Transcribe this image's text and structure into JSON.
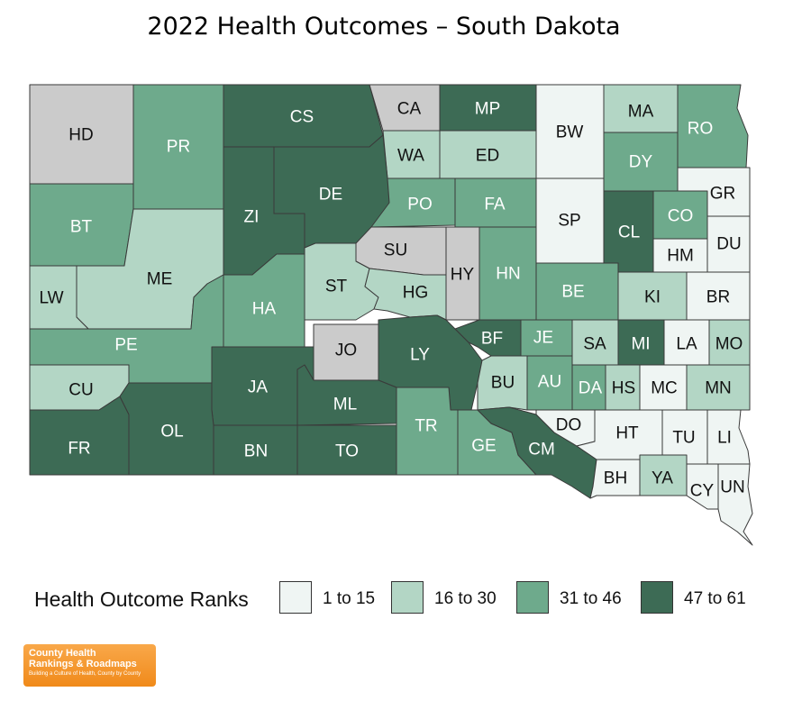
{
  "title": "2022 Health Outcomes – South Dakota",
  "colors": {
    "no_data": "#cbcbcb",
    "tier1": "#eff5f3",
    "tier2": "#b3d6c5",
    "tier3": "#6eaa8c",
    "tier4": "#3d6b55"
  },
  "legend": {
    "title": "Health Outcome Ranks",
    "items": [
      {
        "label": "1 to 15",
        "tier": "tier1"
      },
      {
        "label": "16 to 30",
        "tier": "tier2"
      },
      {
        "label": "31 to 46",
        "tier": "tier3"
      },
      {
        "label": "47 to 61",
        "tier": "tier4"
      }
    ]
  },
  "counties": [
    {
      "abbr": "HD",
      "tier": "no_data"
    },
    {
      "abbr": "PR",
      "tier": "tier3"
    },
    {
      "abbr": "CS",
      "tier": "tier4"
    },
    {
      "abbr": "CA",
      "tier": "no_data"
    },
    {
      "abbr": "MP",
      "tier": "tier4"
    },
    {
      "abbr": "BW",
      "tier": "tier1"
    },
    {
      "abbr": "MA",
      "tier": "tier2"
    },
    {
      "abbr": "RO",
      "tier": "tier3"
    },
    {
      "abbr": "WA",
      "tier": "tier2"
    },
    {
      "abbr": "ED",
      "tier": "tier2"
    },
    {
      "abbr": "DY",
      "tier": "tier3"
    },
    {
      "abbr": "BT",
      "tier": "tier3"
    },
    {
      "abbr": "ZI",
      "tier": "tier4"
    },
    {
      "abbr": "DE",
      "tier": "tier4"
    },
    {
      "abbr": "PO",
      "tier": "tier3"
    },
    {
      "abbr": "FA",
      "tier": "tier3"
    },
    {
      "abbr": "SP",
      "tier": "tier1"
    },
    {
      "abbr": "CL",
      "tier": "tier4"
    },
    {
      "abbr": "CO",
      "tier": "tier3"
    },
    {
      "abbr": "GR",
      "tier": "tier1"
    },
    {
      "abbr": "HM",
      "tier": "tier1"
    },
    {
      "abbr": "DU",
      "tier": "tier1"
    },
    {
      "abbr": "ME",
      "tier": "tier2"
    },
    {
      "abbr": "LW",
      "tier": "tier2"
    },
    {
      "abbr": "SU",
      "tier": "no_data"
    },
    {
      "abbr": "HY",
      "tier": "no_data"
    },
    {
      "abbr": "HN",
      "tier": "tier3"
    },
    {
      "abbr": "BE",
      "tier": "tier3"
    },
    {
      "abbr": "KI",
      "tier": "tier2"
    },
    {
      "abbr": "BR",
      "tier": "tier1"
    },
    {
      "abbr": "ST",
      "tier": "tier2"
    },
    {
      "abbr": "HG",
      "tier": "tier2"
    },
    {
      "abbr": "HA",
      "tier": "tier3"
    },
    {
      "abbr": "PE",
      "tier": "tier3"
    },
    {
      "abbr": "JO",
      "tier": "no_data"
    },
    {
      "abbr": "LY",
      "tier": "tier4"
    },
    {
      "abbr": "BF",
      "tier": "tier4"
    },
    {
      "abbr": "JE",
      "tier": "tier3"
    },
    {
      "abbr": "SA",
      "tier": "tier2"
    },
    {
      "abbr": "MI",
      "tier": "tier4"
    },
    {
      "abbr": "LA",
      "tier": "tier1"
    },
    {
      "abbr": "MO",
      "tier": "tier2"
    },
    {
      "abbr": "CU",
      "tier": "tier2"
    },
    {
      "abbr": "JA",
      "tier": "tier4"
    },
    {
      "abbr": "ML",
      "tier": "tier4"
    },
    {
      "abbr": "BU",
      "tier": "tier2"
    },
    {
      "abbr": "AU",
      "tier": "tier3"
    },
    {
      "abbr": "DA",
      "tier": "tier3"
    },
    {
      "abbr": "HS",
      "tier": "tier2"
    },
    {
      "abbr": "MC",
      "tier": "tier1"
    },
    {
      "abbr": "MN",
      "tier": "tier2"
    },
    {
      "abbr": "FR",
      "tier": "tier4"
    },
    {
      "abbr": "OL",
      "tier": "tier4"
    },
    {
      "abbr": "BN",
      "tier": "tier4"
    },
    {
      "abbr": "TO",
      "tier": "tier4"
    },
    {
      "abbr": "TR",
      "tier": "tier3"
    },
    {
      "abbr": "GE",
      "tier": "tier3"
    },
    {
      "abbr": "CM",
      "tier": "tier4"
    },
    {
      "abbr": "DO",
      "tier": "tier1"
    },
    {
      "abbr": "HT",
      "tier": "tier1"
    },
    {
      "abbr": "TU",
      "tier": "tier1"
    },
    {
      "abbr": "LI",
      "tier": "tier1"
    },
    {
      "abbr": "BH",
      "tier": "tier1"
    },
    {
      "abbr": "YA",
      "tier": "tier2"
    },
    {
      "abbr": "CY",
      "tier": "tier1"
    },
    {
      "abbr": "UN",
      "tier": "tier1"
    }
  ],
  "logo": {
    "line1": "County Health",
    "line2": "Rankings & Roadmaps",
    "tagline": "Building a Culture of Health, County by County"
  }
}
